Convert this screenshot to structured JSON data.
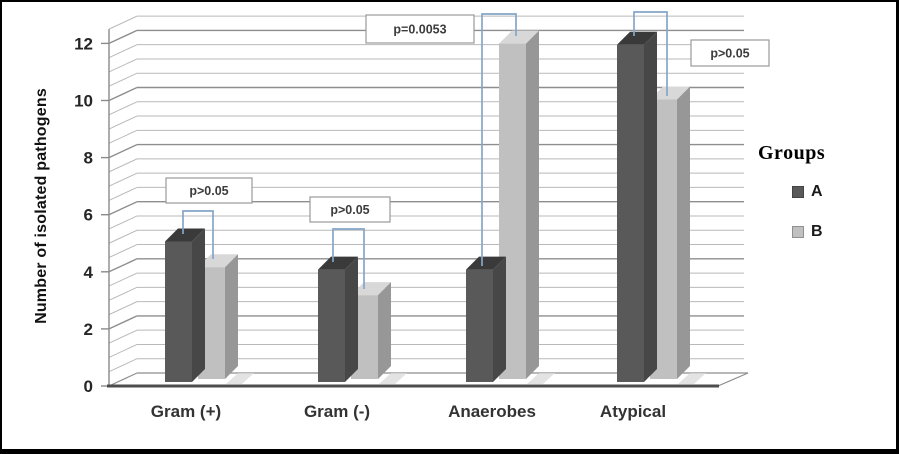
{
  "figure": {
    "background": "#ffffff",
    "border_color": "#000000",
    "ylabel": "Number of isolated pathogens"
  },
  "legend": {
    "title": "Groups",
    "items": [
      {
        "label": "A",
        "color": "#595959"
      },
      {
        "label": "B",
        "color": "#c0c0c0"
      }
    ]
  },
  "colors": {
    "bar_a_front": "#595959",
    "bar_a_top": "#3a3a3a",
    "bar_a_side": "#474747",
    "bar_b_front": "#c0c0c0",
    "bar_b_top": "#d8d8d8",
    "bar_b_side": "#979797",
    "grid_minor": "#b9b9b9",
    "grid_major": "#8e8e8e",
    "axis_line": "#8a8a8a",
    "axis_front": "#4d4d4d",
    "bracket": "#84a6c8",
    "pbox_border": "#9a9a9a",
    "pbox_fill": "#ffffff",
    "tick_text": "#262626",
    "category_text": "#333333",
    "pbox_text": "#3c3c3c",
    "shadow": "#d9d9d9"
  },
  "chart_data": {
    "type": "bar",
    "projection": "3d",
    "title": "",
    "xlabel": "",
    "ylabel": "Number of isolated pathogens",
    "categories": [
      "Gram (+)",
      "Gram (-)",
      "Anaerobes",
      "Atypical"
    ],
    "series": [
      {
        "name": "A",
        "values": [
          5,
          4,
          4,
          12
        ],
        "color": "#595959"
      },
      {
        "name": "B",
        "values": [
          4,
          3,
          12,
          10
        ],
        "color": "#c0c0c0"
      }
    ],
    "ylim": [
      0,
      12.5
    ],
    "yticks": [
      0,
      2,
      4,
      6,
      8,
      10,
      12
    ],
    "minor_gridline_step": 0.5,
    "grid": true,
    "legend_position": "right",
    "legend_title": "Groups",
    "annotations": [
      {
        "category": "Gram (+)",
        "between": [
          "A",
          "B"
        ],
        "label": "p>0.05"
      },
      {
        "category": "Gram (-)",
        "between": [
          "A",
          "B"
        ],
        "label": "p>0.05"
      },
      {
        "category": "Anaerobes",
        "between": [
          "A",
          "B"
        ],
        "label": "p=0.0053"
      },
      {
        "category": "Atypical",
        "between": [
          "A",
          "B"
        ],
        "label": "p>0.05"
      }
    ]
  }
}
